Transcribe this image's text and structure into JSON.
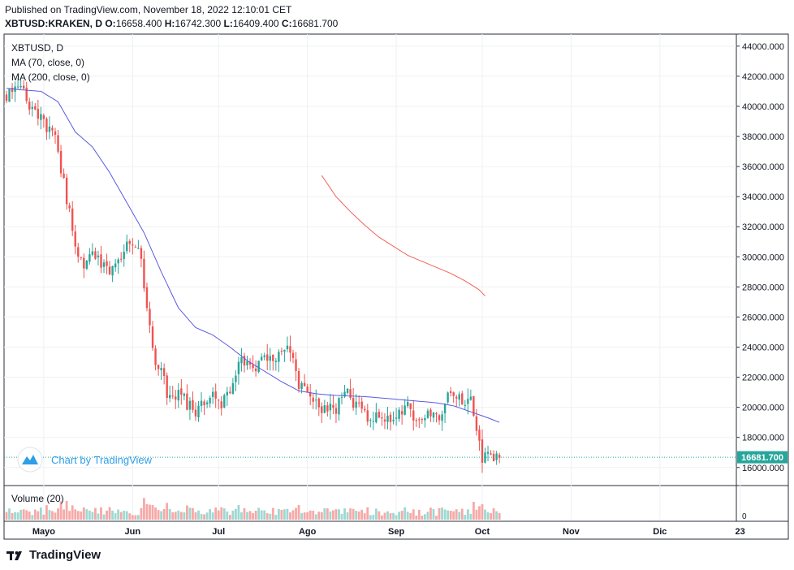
{
  "header": {
    "published": "Published on TradingView.com, November 18, 2022 12:10:01 CET",
    "symbol_line": "XBTUSD:KRAKEN, D",
    "o_label": "O:",
    "o": "16658.400",
    "h_label": "H:",
    "h": "16742.300",
    "l_label": "L:",
    "l": "16409.400",
    "c_label": "C:",
    "c": "16681.700"
  },
  "legend": {
    "symbol": "XBTUSD, D",
    "ma70": "MA (70, close, 0)",
    "ma200": "MA (200, close, 0)",
    "volume": "Volume (20)"
  },
  "watermark": "Chart by TradingView",
  "footer_brand": "TradingView",
  "price_label": "16681.700",
  "colors": {
    "up": "#26a69a",
    "down": "#ef5350",
    "ma70": "#5b5bde",
    "ma200": "#f0625a",
    "grid": "#eef0f3",
    "axis_text": "#131722",
    "last_line": "#26a69a",
    "watermark": "#2e9ee8"
  },
  "chart_data": {
    "type": "candlestick",
    "title": "XBTUSD:KRAKEN, D",
    "x_tick_labels": [
      "Mayo",
      "Jun",
      "Jul",
      "Ago",
      "Sep",
      "Oct",
      "Nov",
      "Dic",
      "23"
    ],
    "y_tick_labels": [
      "16000.000",
      "18000.000",
      "20000.000",
      "22000.000",
      "24000.000",
      "26000.000",
      "28000.000",
      "30000.000",
      "32000.000",
      "34000.000",
      "36000.000",
      "38000.000",
      "40000.000",
      "42000.000",
      "44000.000"
    ],
    "ylim": [
      14800,
      44800
    ],
    "volume_tick": "0",
    "last_close": 16681.7,
    "anchors": [
      [
        0,
        40800
      ],
      [
        4,
        41600
      ],
      [
        8,
        40000
      ],
      [
        12,
        39400
      ],
      [
        14,
        38500
      ],
      [
        17,
        37800
      ],
      [
        19,
        35800
      ],
      [
        22,
        33000
      ],
      [
        24,
        30300
      ],
      [
        27,
        29200
      ],
      [
        30,
        30000
      ],
      [
        33,
        29600
      ],
      [
        36,
        29000
      ],
      [
        39,
        29800
      ],
      [
        42,
        30700
      ],
      [
        45,
        30800
      ],
      [
        47,
        29600
      ],
      [
        50,
        25500
      ],
      [
        52,
        22800
      ],
      [
        54,
        22300
      ],
      [
        57,
        20400
      ],
      [
        60,
        21000
      ],
      [
        63,
        20200
      ],
      [
        66,
        19600
      ],
      [
        69,
        20300
      ],
      [
        72,
        21200
      ],
      [
        75,
        20100
      ],
      [
        78,
        21000
      ],
      [
        81,
        22800
      ],
      [
        84,
        23200
      ],
      [
        87,
        22600
      ],
      [
        90,
        23300
      ],
      [
        93,
        23000
      ],
      [
        96,
        24100
      ],
      [
        99,
        23800
      ],
      [
        102,
        21400
      ],
      [
        105,
        21300
      ],
      [
        108,
        20100
      ],
      [
        111,
        19900
      ],
      [
        114,
        19800
      ],
      [
        117,
        20400
      ],
      [
        119,
        21500
      ],
      [
        121,
        20300
      ],
      [
        124,
        19700
      ],
      [
        127,
        19200
      ],
      [
        130,
        19400
      ],
      [
        133,
        19300
      ],
      [
        136,
        19500
      ],
      [
        139,
        20200
      ],
      [
        142,
        19500
      ],
      [
        145,
        19300
      ],
      [
        148,
        19500
      ],
      [
        151,
        19400
      ],
      [
        154,
        20600
      ],
      [
        157,
        20500
      ],
      [
        160,
        20300
      ],
      [
        162,
        20900
      ],
      [
        164,
        18500
      ],
      [
        166,
        16500
      ],
      [
        169,
        16700
      ],
      [
        172,
        16680
      ]
    ],
    "ma70_anchors": [
      [
        0,
        41200
      ],
      [
        5,
        41100
      ],
      [
        12,
        41000
      ],
      [
        18,
        40300
      ],
      [
        24,
        38300
      ],
      [
        30,
        37300
      ],
      [
        36,
        35600
      ],
      [
        42,
        33600
      ],
      [
        48,
        31600
      ],
      [
        54,
        29000
      ],
      [
        60,
        26600
      ],
      [
        66,
        25300
      ],
      [
        72,
        24800
      ],
      [
        78,
        24000
      ],
      [
        84,
        23100
      ],
      [
        90,
        22400
      ],
      [
        96,
        21700
      ],
      [
        102,
        21100
      ],
      [
        108,
        20900
      ],
      [
        114,
        20800
      ],
      [
        120,
        20750
      ],
      [
        126,
        20700
      ],
      [
        132,
        20600
      ],
      [
        138,
        20500
      ],
      [
        144,
        20400
      ],
      [
        150,
        20300
      ],
      [
        156,
        20100
      ],
      [
        162,
        19700
      ],
      [
        168,
        19300
      ],
      [
        172,
        19000
      ]
    ],
    "ma200_anchors": [
      [
        110,
        35400
      ],
      [
        115,
        34000
      ],
      [
        120,
        33000
      ],
      [
        125,
        32100
      ],
      [
        130,
        31300
      ],
      [
        135,
        30700
      ],
      [
        140,
        30100
      ],
      [
        145,
        29700
      ],
      [
        150,
        29300
      ],
      [
        155,
        28900
      ],
      [
        160,
        28400
      ],
      [
        165,
        27800
      ],
      [
        167,
        27400
      ]
    ],
    "x_tick_days": [
      13,
      44,
      74,
      105,
      136,
      166,
      197,
      228,
      256
    ]
  }
}
